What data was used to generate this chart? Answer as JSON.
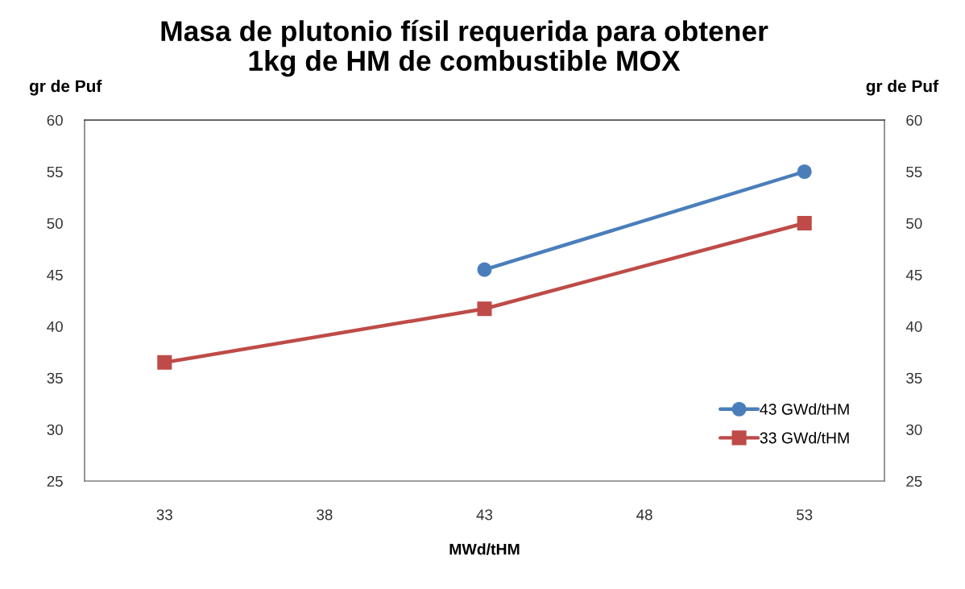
{
  "chart_data": {
    "type": "line",
    "title": "Masa de plutonio físil requerida para obtener\n1kg de HM de combustible MOX",
    "xlabel": "MWd/tHM",
    "ylabel": "gr de Puf",
    "y2label": "gr de Puf",
    "series": [
      {
        "name": "43 GWd/tHM",
        "color": "#4a7ebb",
        "marker": "circle",
        "x": [
          43,
          53
        ],
        "values": [
          45.5,
          55
        ]
      },
      {
        "name": "33 GWd/tHM",
        "color": "#be4b48",
        "marker": "square",
        "x": [
          33,
          43,
          53
        ],
        "values": [
          36.5,
          41.7,
          50
        ]
      }
    ],
    "xlim": [
      30.5,
      55.5
    ],
    "xticks": [
      33,
      38,
      43,
      48,
      53
    ],
    "ylim": [
      25,
      60
    ],
    "yticks": [
      25,
      30,
      35,
      40,
      45,
      50,
      55,
      60
    ],
    "y2lim": [
      25,
      60
    ],
    "y2ticks": [
      25,
      30,
      35,
      40,
      45,
      50,
      55,
      60
    ],
    "legend": "bottom right",
    "line_style": "solid"
  }
}
